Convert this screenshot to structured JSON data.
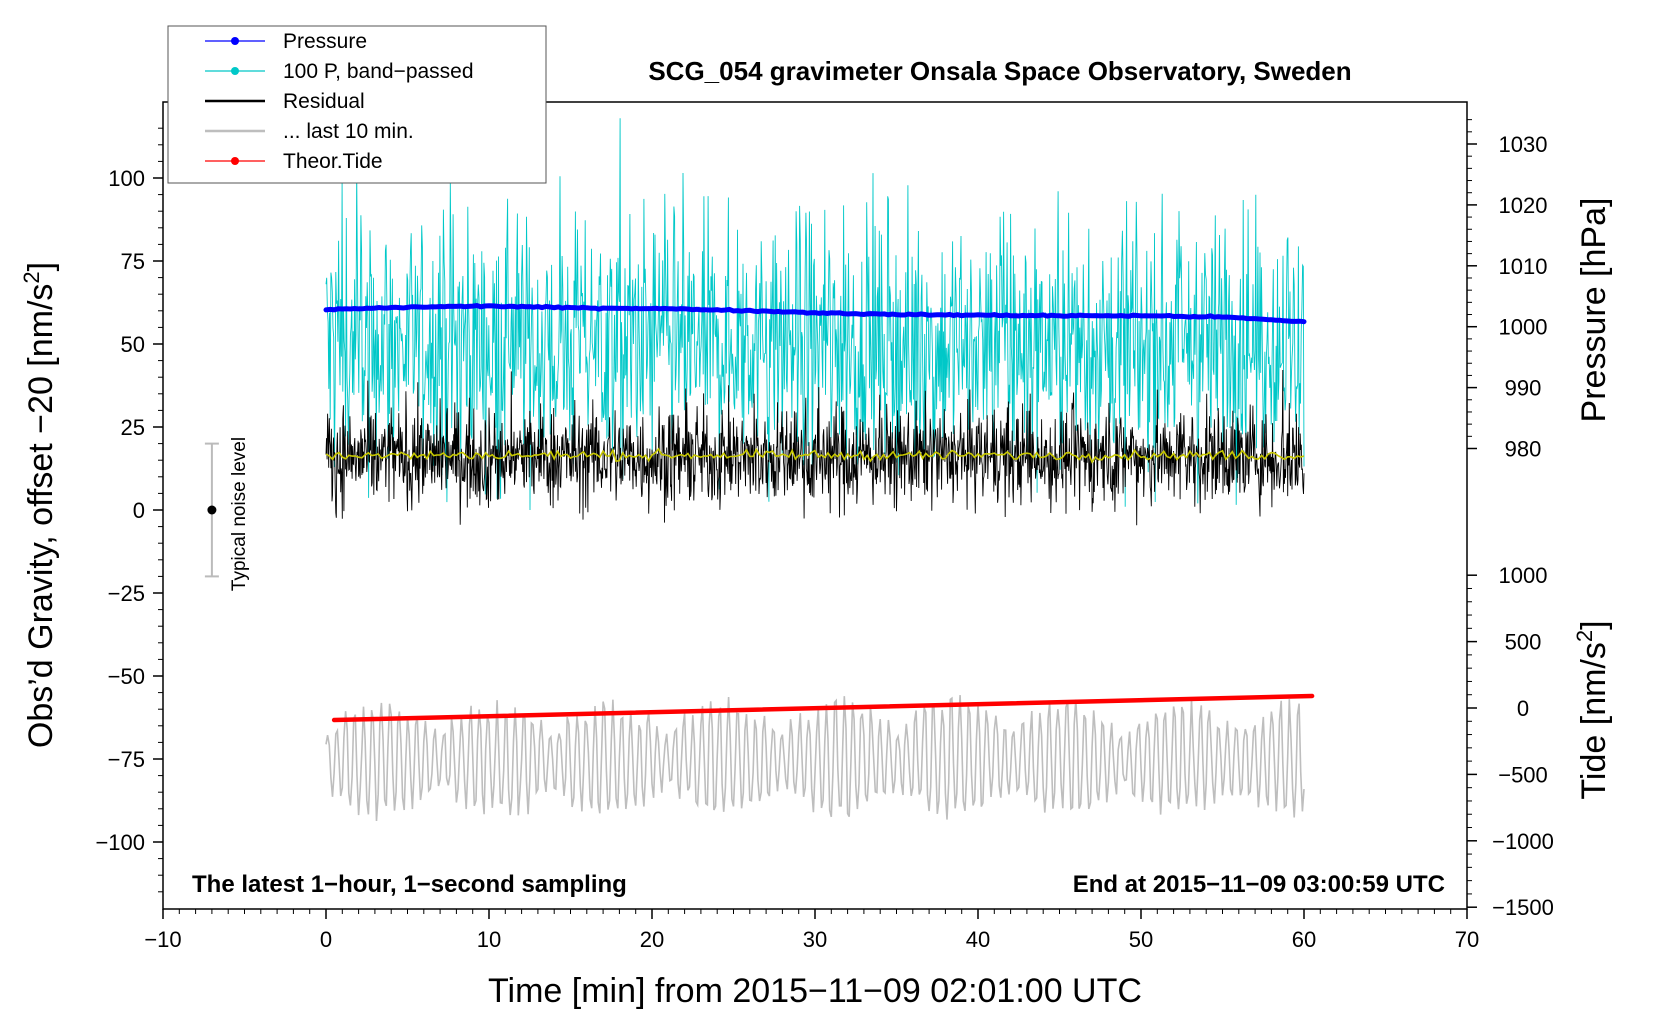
{
  "chart_data": {
    "type": "line",
    "title": "SCG_054 gravimeter Onsala Space Observatory, Sweden",
    "xlabel": "Time [min] from 2015−11−09 02:01:00 UTC",
    "ylabel_left_main": "Obs’d Gravity, offset −20 [nm/s",
    "ylabel_left_sup": "2",
    "ylabel_left_end": "]",
    "ylabel_right_pressure": "Pressure [hPa]",
    "ylabel_right_tide_main": "Tide [nm/s",
    "ylabel_right_tide_sup": "2",
    "ylabel_right_tide_end": "]",
    "xlim": [
      -10,
      70
    ],
    "ylim_left": [
      -120,
      120
    ],
    "ylim_pressure": [
      975,
      1035
    ],
    "ylim_tide": [
      -1500,
      1000
    ],
    "x_ticks": [
      -10,
      0,
      10,
      20,
      30,
      40,
      50,
      60,
      70
    ],
    "x_tick_labels": [
      "−10",
      "0",
      "10",
      "20",
      "30",
      "40",
      "50",
      "60",
      "70"
    ],
    "left_ticks": [
      100,
      75,
      50,
      25,
      0,
      -25,
      -50,
      -75,
      -100
    ],
    "left_tick_labels": [
      "100",
      "75",
      "50",
      "25",
      "0",
      "−25",
      "−50",
      "−75",
      "−100"
    ],
    "pressure_ticks": [
      1030,
      1020,
      1010,
      1000,
      990,
      980
    ],
    "pressure_tick_labels": [
      "1030",
      "1020",
      "1010",
      "1000",
      "990",
      "980"
    ],
    "tide_ticks": [
      1000,
      500,
      0,
      -500,
      -1000,
      -1500
    ],
    "tide_tick_labels": [
      "1000",
      "500",
      "0",
      "−500",
      "−1000",
      "−1500"
    ],
    "annotations": {
      "left": "The latest 1−hour, 1−second sampling",
      "right": "End at 2015−11−09 03:00:59 UTC",
      "noise": "Typical noise level"
    },
    "noise_bar": {
      "x": -7,
      "center": 0,
      "half_width": 20
    },
    "legend": [
      {
        "label": "Pressure",
        "color": "#0000ff",
        "marker": true
      },
      {
        "label": "100 P, band−passed",
        "color": "#00c8c8",
        "marker": true
      },
      {
        "label": "Residual",
        "color": "#000000",
        "marker": false
      },
      {
        "label": "... last 10 min.",
        "color": "#bebebe",
        "marker": false
      },
      {
        "label": "Theor.Tide",
        "color": "#ff0000",
        "marker": true
      }
    ],
    "series": [
      {
        "name": "Pressure",
        "axis": "pressure",
        "color": "#0000ff",
        "x": [
          0,
          5,
          10,
          15,
          20,
          25,
          30,
          35,
          40,
          45,
          50,
          55,
          60
        ],
        "values": [
          1002.8,
          1003.2,
          1003.4,
          1003.1,
          1003.0,
          1002.7,
          1002.3,
          1002.0,
          1001.9,
          1001.8,
          1001.8,
          1001.6,
          1000.8
        ]
      },
      {
        "name": "100 P, band-passed",
        "axis": "left",
        "color": "#00c8c8",
        "center": 50,
        "spread": 24
      },
      {
        "name": "Residual",
        "axis": "left",
        "color": "#000000",
        "center": 16,
        "spread": 9
      },
      {
        "name": "Residual smoothed",
        "axis": "left",
        "color": "#c8c800",
        "center": 16.5,
        "spread": 0.7
      },
      {
        "name": "... last 10 min.",
        "axis": "left",
        "color": "#bebebe",
        "center": -75,
        "spread": 10
      },
      {
        "name": "Theor.Tide",
        "axis": "tide",
        "color": "#ff0000",
        "x": [
          0.5,
          60.5
        ],
        "values": [
          -90,
          90
        ]
      }
    ]
  }
}
